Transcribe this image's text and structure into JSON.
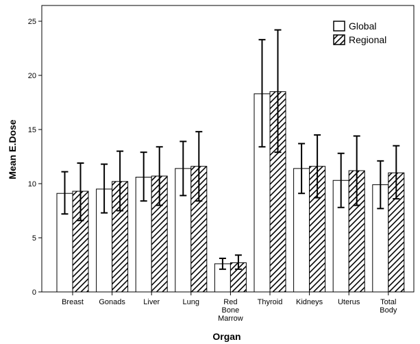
{
  "chart_data": {
    "type": "bar",
    "xlabel": "Organ",
    "ylabel": "Mean E.Dose",
    "ylim": [
      0,
      26
    ],
    "yticks": [
      0,
      5,
      10,
      15,
      20,
      25
    ],
    "grid": false,
    "legend_position": "top-right",
    "categories": [
      [
        "Breast"
      ],
      [
        "Gonads"
      ],
      [
        "Liver"
      ],
      [
        "Lung"
      ],
      [
        "Red",
        "Bone",
        "Marrow"
      ],
      [
        "Thyroid"
      ],
      [
        "Kidneys"
      ],
      [
        "Uterus"
      ],
      [
        "Total",
        "Body"
      ]
    ],
    "series": [
      {
        "name": "Global",
        "pattern": "plain",
        "values": [
          9.1,
          9.5,
          10.6,
          11.4,
          2.6,
          18.3,
          11.4,
          10.3,
          9.9
        ],
        "error_low": [
          7.2,
          7.3,
          8.4,
          8.9,
          2.1,
          13.4,
          9.1,
          7.8,
          7.7
        ],
        "error_high": [
          11.1,
          11.8,
          12.9,
          13.9,
          3.1,
          23.3,
          13.7,
          12.8,
          12.1
        ]
      },
      {
        "name": "Regional",
        "pattern": "hatched",
        "values": [
          9.3,
          10.2,
          10.7,
          11.6,
          2.7,
          18.5,
          11.6,
          11.2,
          11.0
        ],
        "error_low": [
          6.6,
          7.5,
          8.0,
          8.4,
          2.1,
          12.9,
          8.7,
          8.0,
          8.6
        ],
        "error_high": [
          11.9,
          13.0,
          13.4,
          14.8,
          3.4,
          24.2,
          14.5,
          14.4,
          13.5
        ]
      }
    ],
    "colors": {
      "bar_fill": "#ffffff",
      "stroke": "#000000",
      "hatch": "#000000"
    }
  }
}
